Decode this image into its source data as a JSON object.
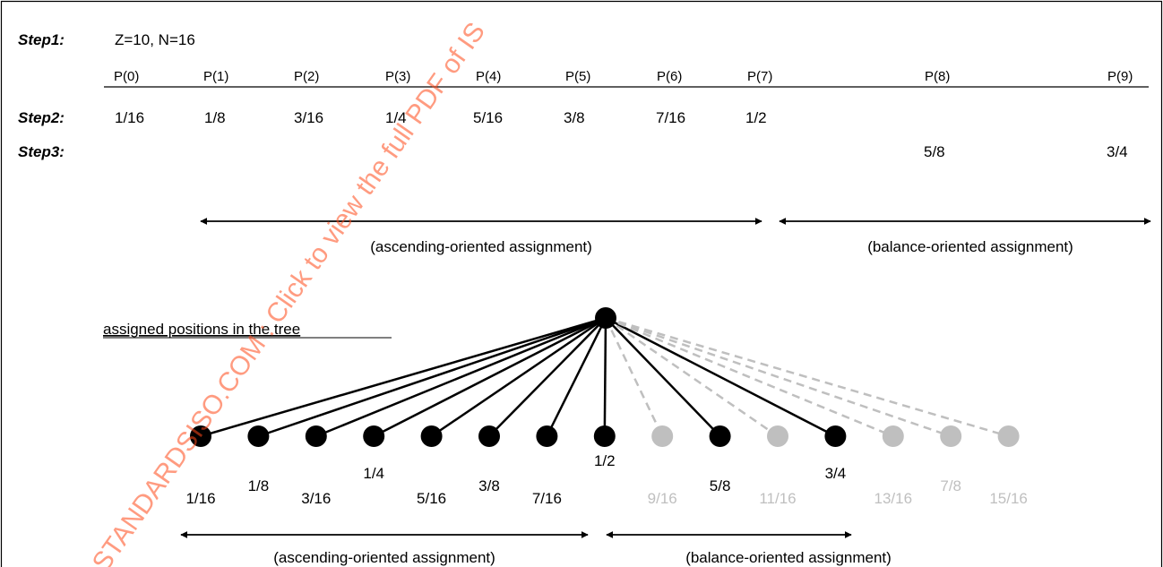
{
  "step1": {
    "label": "Step1:",
    "text": "Z=10, N=16"
  },
  "headers": [
    "P(0)",
    "P(1)",
    "P(2)",
    "P(3)",
    "P(4)",
    "P(5)",
    "P(6)",
    "P(7)",
    "P(8)",
    "P(9)"
  ],
  "step2": {
    "label": "Step2:",
    "values": [
      "1/16",
      "1/8",
      "3/16",
      "1/4",
      "5/16",
      "3/8",
      "7/16",
      "1/2"
    ]
  },
  "step3": {
    "label": "Step3:",
    "values": [
      "5/8",
      "3/4"
    ]
  },
  "top_arrows": {
    "ascending": "(ascending-oriented assignment)",
    "balance": "(balance-oriented assignment)"
  },
  "tree_title": "assigned positions in the tree",
  "tree": {
    "leaves": [
      {
        "label": "1/16",
        "assigned": true
      },
      {
        "label": "1/8",
        "assigned": true
      },
      {
        "label": "3/16",
        "assigned": true
      },
      {
        "label": "1/4",
        "assigned": true
      },
      {
        "label": "5/16",
        "assigned": true
      },
      {
        "label": "3/8",
        "assigned": true
      },
      {
        "label": "7/16",
        "assigned": true
      },
      {
        "label": "1/2",
        "assigned": true
      },
      {
        "label": "9/16",
        "assigned": false
      },
      {
        "label": "5/8",
        "assigned": true
      },
      {
        "label": "11/16",
        "assigned": false
      },
      {
        "label": "3/4",
        "assigned": true
      },
      {
        "label": "13/16",
        "assigned": false
      },
      {
        "label": "7/8",
        "assigned": false
      },
      {
        "label": "15/16",
        "assigned": false
      }
    ],
    "colors": {
      "assigned": "#000000",
      "unassigned": "#bfbfbf"
    }
  },
  "bottom_arrows": {
    "ascending": "(ascending-oriented assignment)",
    "balance": "(balance-oriented assignment)"
  },
  "watermark": "STANDARDSISO.COM : Click to view the full PDF of IS"
}
